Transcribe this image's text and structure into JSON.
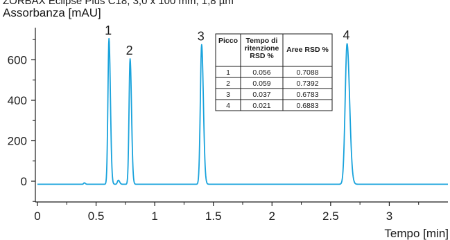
{
  "header_fragment": "ZORBAX Eclipse Plus C18, 3,0 x 100 mm, 1,8 µm",
  "chart_data": {
    "type": "line",
    "xlabel": "Tempo [min]",
    "ylabel": "Assorbanza [mAU]",
    "xlim": [
      0,
      3.5
    ],
    "ylim": [
      -60,
      740
    ],
    "x_ticks": [
      0,
      0.5,
      1,
      1.5,
      2,
      2.5,
      3
    ],
    "x_tick_labels": [
      "0",
      "0.5",
      "1",
      "1.5",
      "2",
      "2.5",
      "3"
    ],
    "y_ticks": [
      0,
      200,
      400,
      600
    ],
    "y_tick_labels": [
      "0",
      "200",
      "400",
      "600"
    ],
    "grid": false,
    "series_color": "#1aa3dc",
    "baseline": -15,
    "peaks": [
      {
        "label": "1",
        "x": 0.61,
        "y": 705,
        "width": 0.009
      },
      {
        "label": "2",
        "x": 0.79,
        "y": 605,
        "width": 0.009
      },
      {
        "label": "3",
        "x": 1.4,
        "y": 675,
        "width": 0.011
      },
      {
        "label": "4",
        "x": 2.64,
        "y": 680,
        "width": 0.016
      }
    ],
    "minor_features": [
      {
        "x": 0.4,
        "y": -8,
        "width": 0.006
      },
      {
        "x": 0.69,
        "y": 5,
        "width": 0.008
      }
    ]
  },
  "table": {
    "headers": [
      "Picco",
      "Tempo di ritenzione RSD %",
      "Aree RSD %"
    ],
    "header_lines": [
      [
        "Picco"
      ],
      [
        "Tempo di",
        "ritenzione",
        "RSD %"
      ],
      [
        "Aree RSD %"
      ]
    ],
    "rows": [
      [
        "1",
        "0.056",
        "0.7088"
      ],
      [
        "2",
        "0.059",
        "0.7392"
      ],
      [
        "3",
        "0.037",
        "0.6783"
      ],
      [
        "4",
        "0.021",
        "0.6883"
      ]
    ]
  }
}
